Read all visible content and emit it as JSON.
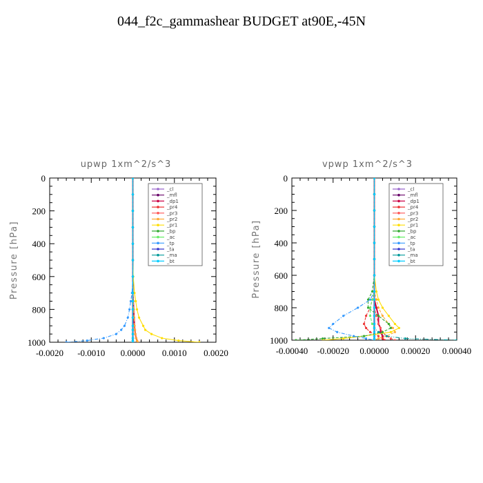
{
  "page_title": "044_f2c_gammashear  BUDGET at90E,-45N",
  "chart_data": [
    {
      "type": "line",
      "title": "upwp   1xm^2/s^3",
      "ylabel": "Pressure  [hPa]",
      "xlabel": "",
      "xlim": [
        -0.002,
        0.002
      ],
      "ylim": [
        1000,
        0
      ],
      "xticks": [
        "-0.0020",
        "-0.0010",
        "0.0000",
        "0.0010",
        "0.0020"
      ],
      "xtick_values": [
        -0.002,
        -0.001,
        0,
        0.001,
        0.002
      ],
      "yticks": [
        0,
        200,
        400,
        600,
        800,
        1000
      ],
      "legend_position": "top-right",
      "y": [
        0,
        100,
        200,
        300,
        400,
        500,
        600,
        700,
        750,
        800,
        850,
        900,
        925,
        950,
        975,
        990,
        1000
      ],
      "series": [
        {
          "name": "_cl",
          "color": "#9966cc",
          "values": [
            0,
            0,
            0,
            0,
            0,
            0,
            0,
            0,
            0,
            0,
            0,
            0,
            0,
            0,
            0,
            0,
            0
          ]
        },
        {
          "name": "_mfl",
          "color": "#660066",
          "values": [
            0,
            0,
            0,
            0,
            0,
            0,
            0,
            0,
            0,
            0,
            0,
            0,
            0,
            0,
            0,
            0,
            0
          ]
        },
        {
          "name": "_dp1",
          "color": "#cc0044",
          "values": [
            0,
            0,
            0,
            0,
            0,
            0,
            0,
            0,
            1e-05,
            2e-05,
            3e-05,
            4e-05,
            5e-05,
            6e-05,
            8e-05,
            0.0001,
            0.00012
          ]
        },
        {
          "name": "_pr4",
          "color": "#ee3333",
          "values": [
            0,
            0,
            0,
            0,
            0,
            0,
            0,
            0,
            0,
            0,
            0,
            0,
            0,
            0,
            0,
            0,
            0
          ]
        },
        {
          "name": "_pr3",
          "color": "#ff5555",
          "values": [
            0,
            0,
            0,
            0,
            0,
            0,
            0,
            0,
            1e-05,
            2e-05,
            3e-05,
            4e-05,
            5e-05,
            6e-05,
            8e-05,
            0.0001,
            0.00012
          ]
        },
        {
          "name": "_pr2",
          "color": "#ffaa33",
          "values": [
            0,
            0,
            0,
            0,
            0,
            0,
            0,
            0,
            1e-05,
            2e-05,
            3e-05,
            4e-05,
            5e-05,
            6e-05,
            8e-05,
            0.0001,
            0.00012
          ]
        },
        {
          "name": "_pr1",
          "color": "#ffdd00",
          "values": [
            0,
            0,
            0,
            0,
            0,
            0,
            1e-05,
            4e-05,
            7e-05,
            0.0001,
            0.00015,
            0.00025,
            0.0003,
            0.00045,
            0.0007,
            0.0011,
            0.0016
          ]
        },
        {
          "name": "_bp",
          "color": "#33aa33",
          "values": [
            0,
            0,
            0,
            0,
            0,
            0,
            0,
            0,
            0,
            0,
            0,
            0,
            0,
            0,
            0,
            0,
            0
          ]
        },
        {
          "name": "_ac",
          "color": "#66ee66",
          "values": [
            0,
            0,
            0,
            0,
            0,
            0,
            0,
            0,
            0,
            0,
            0,
            0,
            0,
            0,
            0,
            0,
            0
          ]
        },
        {
          "name": "_tp",
          "color": "#3399ff",
          "values": [
            0,
            0,
            0,
            0,
            0,
            0,
            0,
            -2e-05,
            -5e-05,
            -8e-05,
            -0.00012,
            -0.0002,
            -0.00028,
            -0.0004,
            -0.0007,
            -0.0011,
            -0.0016
          ]
        },
        {
          "name": "_ta",
          "color": "#3333cc",
          "values": [
            0,
            0,
            0,
            0,
            0,
            0,
            0,
            0,
            0,
            0,
            0,
            0,
            0,
            0,
            0,
            0,
            0
          ]
        },
        {
          "name": "_ma",
          "color": "#009999",
          "values": [
            0,
            0,
            0,
            0,
            0,
            0,
            0,
            0,
            0,
            0,
            0,
            0,
            0,
            0,
            0,
            0,
            0
          ]
        },
        {
          "name": "_bt",
          "color": "#00ccff",
          "values": [
            0,
            0,
            0,
            0,
            0,
            0,
            0,
            0,
            0,
            0,
            0,
            0,
            0,
            0,
            0,
            0,
            0
          ]
        }
      ]
    },
    {
      "type": "line",
      "title": "vpwp   1xm^2/s^3",
      "ylabel": "Pressure  [hPa]",
      "xlabel": "",
      "xlim": [
        -0.0004,
        0.0004
      ],
      "ylim": [
        1000,
        0
      ],
      "xticks": [
        "-0.00040",
        "-0.00020",
        "0.00000",
        "0.00020",
        "0.00040"
      ],
      "xtick_values": [
        -0.0004,
        -0.0002,
        0,
        0.0002,
        0.0004
      ],
      "yticks": [
        0,
        200,
        400,
        600,
        800,
        1000
      ],
      "legend_position": "top-right",
      "y": [
        0,
        100,
        200,
        300,
        400,
        500,
        600,
        700,
        750,
        800,
        850,
        900,
        925,
        950,
        975,
        990,
        1000
      ],
      "series": [
        {
          "name": "_cl",
          "color": "#9966cc",
          "values": [
            0,
            0,
            0,
            0,
            0,
            0,
            0,
            0,
            0,
            0,
            0,
            0,
            0,
            0,
            0,
            0,
            0
          ]
        },
        {
          "name": "_mfl",
          "color": "#660066",
          "values": [
            0,
            0,
            0,
            0,
            0,
            0,
            0,
            0,
            0,
            0,
            0,
            0,
            0,
            0,
            0,
            0,
            0
          ]
        },
        {
          "name": "_dp1",
          "color": "#cc0044",
          "values": [
            0,
            0,
            0,
            0,
            0,
            0,
            0,
            0,
            0,
            1e-05,
            2e-05,
            2e-05,
            3e-05,
            3e-05,
            4e-05,
            4e-05,
            5e-05
          ]
        },
        {
          "name": "_pr4",
          "color": "#ee3333",
          "values": [
            0,
            0,
            0,
            0,
            0,
            0,
            0,
            0,
            -1e-05,
            -2e-05,
            -4e-05,
            -5e-05,
            -4e-05,
            -2e-05,
            2e-05,
            4e-05,
            5e-05
          ]
        },
        {
          "name": "_pr3",
          "color": "#ff5555",
          "values": [
            0,
            0,
            0,
            0,
            0,
            0,
            0,
            0,
            0,
            0,
            1e-05,
            2e-05,
            3e-05,
            4e-05,
            6e-05,
            8e-05,
            0.0001
          ]
        },
        {
          "name": "_pr2",
          "color": "#ffaa33",
          "values": [
            0,
            0,
            0,
            0,
            0,
            0,
            0,
            0,
            1e-05,
            2e-05,
            4e-05,
            7e-05,
            9e-05,
            0.0001,
            6e-05,
            2e-05,
            0
          ]
        },
        {
          "name": "_pr1",
          "color": "#ffdd00",
          "values": [
            0,
            0,
            0,
            0,
            0,
            0,
            0,
            1e-05,
            2e-05,
            4e-05,
            7e-05,
            0.0001,
            0.00012,
            8e-05,
            -5e-05,
            -0.00015,
            -0.00025
          ]
        },
        {
          "name": "_bp",
          "color": "#33aa33",
          "values": [
            0,
            0,
            0,
            0,
            0,
            0,
            0,
            -1e-05,
            -3e-05,
            -3e-05,
            2e-05,
            7e-05,
            8e-05,
            4e-05,
            -5e-05,
            -0.00025,
            -0.00038
          ]
        },
        {
          "name": "_ac",
          "color": "#66ee66",
          "values": [
            0,
            0,
            0,
            0,
            0,
            0,
            0,
            0,
            -1e-05,
            -2e-05,
            -2e-05,
            -1e-05,
            0,
            0,
            0,
            0,
            0
          ]
        },
        {
          "name": "_tp",
          "color": "#3399ff",
          "values": [
            0,
            0,
            0,
            0,
            0,
            0,
            0,
            0,
            -2e-05,
            -8e-05,
            -0.00015,
            -0.0002,
            -0.00022,
            -0.00018,
            -0.0001,
            -4e-05,
            0
          ]
        },
        {
          "name": "_ta",
          "color": "#3333cc",
          "values": [
            0,
            0,
            0,
            0,
            0,
            0,
            0,
            0,
            0,
            0,
            0,
            0,
            0,
            0,
            0,
            0,
            0
          ]
        },
        {
          "name": "_ma",
          "color": "#009999",
          "values": [
            0,
            0,
            0,
            0,
            0,
            0,
            0,
            0,
            0,
            0,
            0,
            0,
            0,
            2e-05,
            6e-05,
            0.00015,
            0.0004
          ]
        },
        {
          "name": "_bt",
          "color": "#00ccff",
          "values": [
            0,
            0,
            0,
            0,
            0,
            0,
            0,
            0,
            0,
            0,
            0,
            0,
            0,
            0,
            0,
            0,
            0
          ]
        }
      ]
    }
  ]
}
